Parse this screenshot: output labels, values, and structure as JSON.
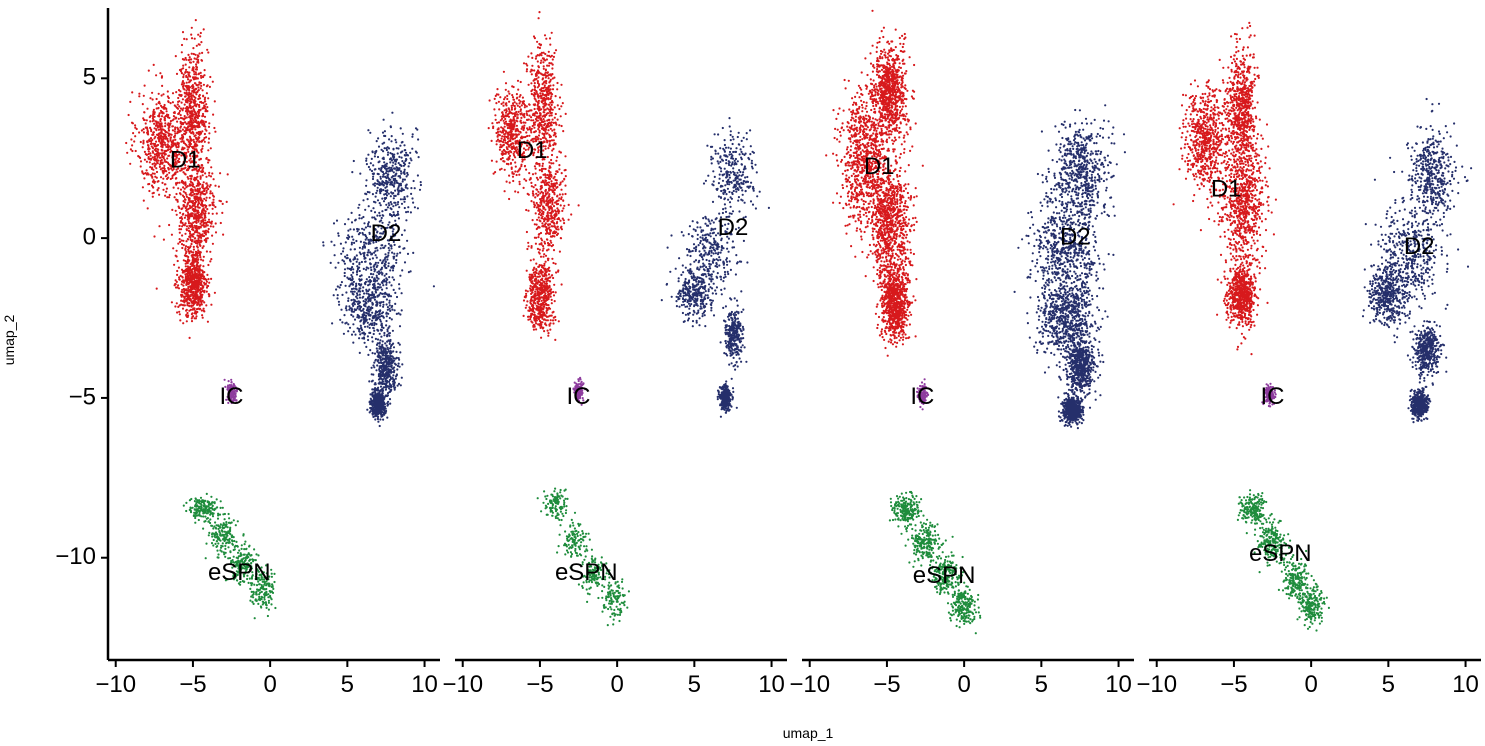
{
  "chart_data": {
    "type": "scatter",
    "title": "",
    "xlabel": "umap_1",
    "ylabel": "umap_2",
    "xlim": [
      -10.5,
      11.0
    ],
    "ylim": [
      -13.2,
      7.2
    ],
    "x_ticks": [
      -10,
      -5,
      0,
      5,
      10
    ],
    "y_ticks": [
      5,
      0,
      -5,
      -10
    ],
    "x_tick_labels": [
      "−10",
      "−5",
      "0",
      "5",
      "10"
    ],
    "y_tick_labels": [
      "5",
      "0",
      "−5",
      "−10"
    ],
    "grid": false,
    "legend": "none",
    "series": [
      {
        "name": "D1",
        "color": "#d7191c"
      },
      {
        "name": "D2",
        "color": "#252f6b"
      },
      {
        "name": "IC",
        "color": "#8e3c9e"
      },
      {
        "name": "eSPN",
        "color": "#1e8c3c"
      }
    ],
    "panels": [
      {
        "labels": [
          {
            "text": "D1",
            "x": -5.5,
            "y": 2.4
          },
          {
            "text": "D2",
            "x": 7.5,
            "y": 0.1
          },
          {
            "text": "IC",
            "x": -2.5,
            "y": -5.0
          },
          {
            "text": "eSPN",
            "x": -2.0,
            "y": -10.5
          }
        ],
        "clusters": [
          {
            "series": "D1",
            "n": 2400,
            "blobs": [
              [
                -7.0,
                3.0,
                1.6,
                1.6
              ],
              [
                -5.0,
                4.0,
                1.0,
                2.0
              ],
              [
                -4.8,
                0.8,
                1.3,
                1.7
              ],
              [
                -5.0,
                -1.5,
                0.9,
                1.0
              ]
            ]
          },
          {
            "series": "D2",
            "n": 2000,
            "blobs": [
              [
                7.8,
                2.0,
                1.5,
                1.4
              ],
              [
                6.5,
                -0.5,
                2.2,
                1.5
              ],
              [
                6.5,
                -2.2,
                1.7,
                1.0
              ],
              [
                7.5,
                -4.0,
                0.8,
                0.8
              ],
              [
                7.0,
                -5.2,
                0.5,
                0.4
              ]
            ]
          },
          {
            "series": "IC",
            "n": 140,
            "blobs": [
              [
                -2.5,
                -4.8,
                0.3,
                0.3
              ]
            ]
          },
          {
            "series": "eSPN",
            "n": 650,
            "blobs": [
              [
                -4.3,
                -8.5,
                0.9,
                0.4
              ],
              [
                -3.0,
                -9.3,
                0.9,
                0.6
              ],
              [
                -1.8,
                -10.2,
                0.8,
                0.6
              ],
              [
                -0.5,
                -11.0,
                0.8,
                0.7
              ]
            ]
          }
        ]
      },
      {
        "labels": [
          {
            "text": "D1",
            "x": -5.5,
            "y": 2.7
          },
          {
            "text": "D2",
            "x": 7.5,
            "y": 0.3
          },
          {
            "text": "IC",
            "x": -2.5,
            "y": -5.0
          },
          {
            "text": "eSPN",
            "x": -2.0,
            "y": -10.5
          }
        ],
        "clusters": [
          {
            "series": "D1",
            "n": 1900,
            "blobs": [
              [
                -6.8,
                3.3,
                1.2,
                1.4
              ],
              [
                -4.8,
                4.2,
                1.0,
                1.8
              ],
              [
                -4.5,
                1.0,
                1.1,
                1.6
              ],
              [
                -5.0,
                -1.8,
                0.9,
                1.0
              ]
            ]
          },
          {
            "series": "D2",
            "n": 1400,
            "blobs": [
              [
                7.5,
                2.0,
                1.4,
                1.2
              ],
              [
                6.0,
                -0.5,
                1.8,
                1.3
              ],
              [
                5.0,
                -1.8,
                1.2,
                0.8
              ],
              [
                7.5,
                -3.0,
                0.6,
                0.8
              ],
              [
                7.0,
                -5.0,
                0.4,
                0.4
              ]
            ]
          },
          {
            "series": "IC",
            "n": 120,
            "blobs": [
              [
                -2.5,
                -4.8,
                0.3,
                0.3
              ]
            ]
          },
          {
            "series": "eSPN",
            "n": 450,
            "blobs": [
              [
                -4.0,
                -8.3,
                0.8,
                0.5
              ],
              [
                -2.8,
                -9.5,
                0.8,
                0.6
              ],
              [
                -1.5,
                -10.5,
                0.8,
                0.6
              ],
              [
                -0.2,
                -11.3,
                0.8,
                0.6
              ]
            ]
          }
        ]
      },
      {
        "labels": [
          {
            "text": "D1",
            "x": -5.5,
            "y": 2.2
          },
          {
            "text": "D2",
            "x": 7.2,
            "y": 0.0
          },
          {
            "text": "IC",
            "x": -2.7,
            "y": -5.0
          },
          {
            "text": "eSPN",
            "x": -1.3,
            "y": -10.6
          }
        ],
        "clusters": [
          {
            "series": "D1",
            "n": 3200,
            "blobs": [
              [
                -6.5,
                2.5,
                1.6,
                2.2
              ],
              [
                -4.8,
                4.5,
                1.1,
                1.5
              ],
              [
                -4.8,
                0.5,
                1.3,
                1.8
              ],
              [
                -4.5,
                -2.0,
                0.9,
                1.1
              ]
            ]
          },
          {
            "series": "D2",
            "n": 3000,
            "blobs": [
              [
                7.5,
                2.0,
                1.8,
                1.5
              ],
              [
                6.5,
                -0.5,
                2.2,
                1.6
              ],
              [
                6.5,
                -2.5,
                1.8,
                1.1
              ],
              [
                7.5,
                -4.0,
                0.9,
                0.9
              ],
              [
                7.0,
                -5.4,
                0.6,
                0.4
              ]
            ]
          },
          {
            "series": "IC",
            "n": 150,
            "blobs": [
              [
                -2.7,
                -4.9,
                0.3,
                0.3
              ]
            ]
          },
          {
            "series": "eSPN",
            "n": 800,
            "blobs": [
              [
                -3.8,
                -8.5,
                0.9,
                0.5
              ],
              [
                -2.5,
                -9.5,
                0.9,
                0.6
              ],
              [
                -1.2,
                -10.5,
                0.9,
                0.6
              ],
              [
                0.0,
                -11.5,
                0.8,
                0.6
              ]
            ]
          }
        ]
      },
      {
        "labels": [
          {
            "text": "D1",
            "x": -5.5,
            "y": 1.5
          },
          {
            "text": "D2",
            "x": 7.0,
            "y": -0.3
          },
          {
            "text": "IC",
            "x": -2.5,
            "y": -5.0
          },
          {
            "text": "eSPN",
            "x": -2.0,
            "y": -9.9
          }
        ],
        "clusters": [
          {
            "series": "D1",
            "n": 2600,
            "blobs": [
              [
                -6.8,
                3.0,
                1.4,
                1.6
              ],
              [
                -4.5,
                4.0,
                1.0,
                2.0
              ],
              [
                -4.3,
                1.0,
                1.3,
                1.8
              ],
              [
                -4.5,
                -1.8,
                0.9,
                1.0
              ]
            ]
          },
          {
            "series": "D2",
            "n": 2100,
            "blobs": [
              [
                7.8,
                2.0,
                1.4,
                1.3
              ],
              [
                6.5,
                -0.5,
                2.0,
                1.5
              ],
              [
                5.0,
                -1.8,
                1.2,
                0.9
              ],
              [
                7.5,
                -3.5,
                0.8,
                0.8
              ],
              [
                7.0,
                -5.2,
                0.5,
                0.4
              ]
            ]
          },
          {
            "series": "IC",
            "n": 130,
            "blobs": [
              [
                -2.7,
                -4.9,
                0.3,
                0.3
              ]
            ]
          },
          {
            "series": "eSPN",
            "n": 750,
            "blobs": [
              [
                -3.8,
                -8.5,
                0.9,
                0.5
              ],
              [
                -2.5,
                -9.5,
                0.9,
                0.6
              ],
              [
                -1.0,
                -10.7,
                0.9,
                0.6
              ],
              [
                0.0,
                -11.5,
                0.8,
                0.6
              ]
            ]
          }
        ]
      }
    ]
  }
}
